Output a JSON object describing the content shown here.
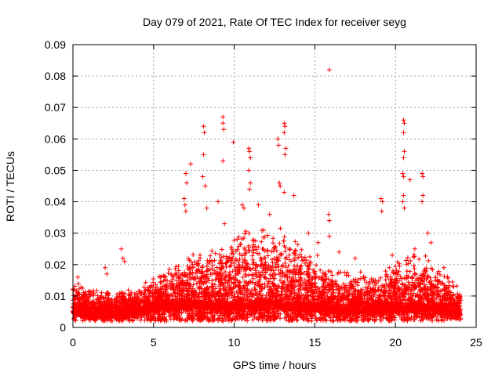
{
  "chart_data": {
    "type": "scatter",
    "title": "Day 079 of 2021, Rate Of TEC Index for receiver seyg",
    "xlabel": "GPS time / hours",
    "ylabel": "ROTI / TECUs",
    "xlim": [
      0,
      25
    ],
    "ylim": [
      0,
      0.09
    ],
    "x_ticks": [
      "0",
      "5",
      "10",
      "15",
      "20",
      "25"
    ],
    "y_ticks": [
      "0",
      "0.01",
      "0.02",
      "0.03",
      "0.04",
      "0.05",
      "0.06",
      "0.07",
      "0.08",
      "0.09"
    ],
    "grid": true,
    "legend": "none",
    "marker": "+",
    "color": "#ff0000",
    "envelope": {
      "description_hours": [
        0,
        1,
        2,
        3,
        4,
        5,
        6,
        7,
        8,
        9,
        10,
        11,
        12,
        13,
        14,
        15,
        16,
        17,
        18,
        19,
        20,
        21,
        22,
        23,
        24
      ],
      "typical_max": [
        0.015,
        0.013,
        0.012,
        0.013,
        0.013,
        0.016,
        0.02,
        0.024,
        0.026,
        0.026,
        0.03,
        0.032,
        0.032,
        0.032,
        0.028,
        0.024,
        0.02,
        0.018,
        0.018,
        0.018,
        0.022,
        0.024,
        0.024,
        0.018,
        0.013
      ],
      "typical_min": [
        0.003,
        0.002,
        0.002,
        0.002,
        0.003,
        0.004,
        0.004,
        0.004,
        0.004,
        0.003,
        0.003,
        0.003,
        0.003,
        0.003,
        0.003,
        0.003,
        0.003,
        0.003,
        0.003,
        0.003,
        0.003,
        0.003,
        0.003,
        0.003,
        0.003
      ]
    },
    "outliers": [
      {
        "x": 15.9,
        "y": 0.082
      },
      {
        "x": 9.3,
        "y": 0.067
      },
      {
        "x": 9.3,
        "y": 0.065
      },
      {
        "x": 9.35,
        "y": 0.063
      },
      {
        "x": 8.1,
        "y": 0.064
      },
      {
        "x": 8.15,
        "y": 0.062
      },
      {
        "x": 8.1,
        "y": 0.055
      },
      {
        "x": 8.05,
        "y": 0.048
      },
      {
        "x": 9.95,
        "y": 0.059
      },
      {
        "x": 9.3,
        "y": 0.053
      },
      {
        "x": 10.9,
        "y": 0.057
      },
      {
        "x": 10.95,
        "y": 0.056
      },
      {
        "x": 11.0,
        "y": 0.054
      },
      {
        "x": 10.9,
        "y": 0.05
      },
      {
        "x": 11.0,
        "y": 0.046
      },
      {
        "x": 10.95,
        "y": 0.044
      },
      {
        "x": 12.7,
        "y": 0.06
      },
      {
        "x": 12.75,
        "y": 0.058
      },
      {
        "x": 13.1,
        "y": 0.065
      },
      {
        "x": 13.15,
        "y": 0.064
      },
      {
        "x": 13.1,
        "y": 0.062
      },
      {
        "x": 13.2,
        "y": 0.057
      },
      {
        "x": 13.15,
        "y": 0.055
      },
      {
        "x": 12.8,
        "y": 0.046
      },
      {
        "x": 12.85,
        "y": 0.045
      },
      {
        "x": 13.7,
        "y": 0.042
      },
      {
        "x": 13.1,
        "y": 0.043
      },
      {
        "x": 7.0,
        "y": 0.049
      },
      {
        "x": 7.05,
        "y": 0.046
      },
      {
        "x": 7.3,
        "y": 0.052
      },
      {
        "x": 6.9,
        "y": 0.041
      },
      {
        "x": 6.95,
        "y": 0.039
      },
      {
        "x": 7.0,
        "y": 0.037
      },
      {
        "x": 8.2,
        "y": 0.045
      },
      {
        "x": 8.3,
        "y": 0.038
      },
      {
        "x": 20.5,
        "y": 0.066
      },
      {
        "x": 20.55,
        "y": 0.065
      },
      {
        "x": 20.5,
        "y": 0.062
      },
      {
        "x": 20.55,
        "y": 0.056
      },
      {
        "x": 20.5,
        "y": 0.054
      },
      {
        "x": 20.45,
        "y": 0.049
      },
      {
        "x": 20.5,
        "y": 0.048
      },
      {
        "x": 20.9,
        "y": 0.047
      },
      {
        "x": 20.5,
        "y": 0.042
      },
      {
        "x": 20.45,
        "y": 0.04
      },
      {
        "x": 20.55,
        "y": 0.038
      },
      {
        "x": 21.65,
        "y": 0.049
      },
      {
        "x": 21.7,
        "y": 0.048
      },
      {
        "x": 21.7,
        "y": 0.042
      },
      {
        "x": 21.65,
        "y": 0.04
      },
      {
        "x": 19.1,
        "y": 0.041
      },
      {
        "x": 19.2,
        "y": 0.04
      },
      {
        "x": 19.15,
        "y": 0.037
      },
      {
        "x": 15.85,
        "y": 0.036
      },
      {
        "x": 15.9,
        "y": 0.034
      },
      {
        "x": 15.9,
        "y": 0.029
      },
      {
        "x": 10.5,
        "y": 0.039
      },
      {
        "x": 10.6,
        "y": 0.038
      },
      {
        "x": 11.5,
        "y": 0.039
      },
      {
        "x": 12.2,
        "y": 0.036
      },
      {
        "x": 9.0,
        "y": 0.04
      },
      {
        "x": 9.4,
        "y": 0.033
      },
      {
        "x": 3.0,
        "y": 0.025
      },
      {
        "x": 3.1,
        "y": 0.022
      },
      {
        "x": 3.2,
        "y": 0.021
      },
      {
        "x": 2.0,
        "y": 0.019
      },
      {
        "x": 2.1,
        "y": 0.017
      },
      {
        "x": 0.3,
        "y": 0.016
      },
      {
        "x": 14.6,
        "y": 0.03
      },
      {
        "x": 15.2,
        "y": 0.027
      },
      {
        "x": 16.5,
        "y": 0.024
      },
      {
        "x": 17.5,
        "y": 0.022
      },
      {
        "x": 19.8,
        "y": 0.023
      },
      {
        "x": 21.2,
        "y": 0.025
      },
      {
        "x": 22.0,
        "y": 0.03
      },
      {
        "x": 22.2,
        "y": 0.027
      },
      {
        "x": 23.0,
        "y": 0.019
      }
    ]
  }
}
